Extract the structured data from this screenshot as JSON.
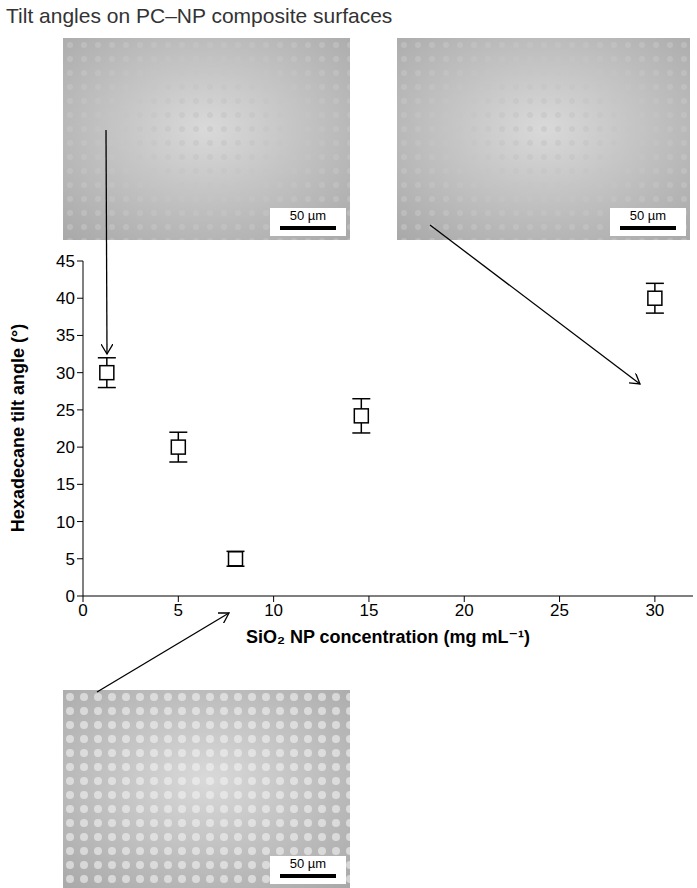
{
  "chart_data": {
    "type": "scatter",
    "title": "Tilt angles on PC–NP composite surfaces",
    "x_label": "SiO₂ NP concentration (mg mL⁻¹)",
    "y_label": "Hexadecane tilt angle (°)",
    "x": [
      1.25,
      5,
      8,
      14.6,
      30
    ],
    "values": [
      30,
      20,
      5,
      24.2,
      40
    ],
    "errors": [
      2,
      2,
      1,
      2.3,
      2
    ],
    "xlim": [
      0,
      32
    ],
    "xticks": [
      0,
      5,
      10,
      15,
      20,
      25,
      30
    ],
    "ylim": [
      0,
      45
    ],
    "yticks": [
      0,
      5,
      10,
      15,
      20,
      25,
      30,
      35,
      40,
      45
    ],
    "marker": "square",
    "color": "#000000",
    "grid": false,
    "images": [
      {
        "scale_bar": "50 µm"
      },
      {
        "scale_bar": "50 µm"
      },
      {
        "scale_bar": "50 µm"
      }
    ]
  }
}
